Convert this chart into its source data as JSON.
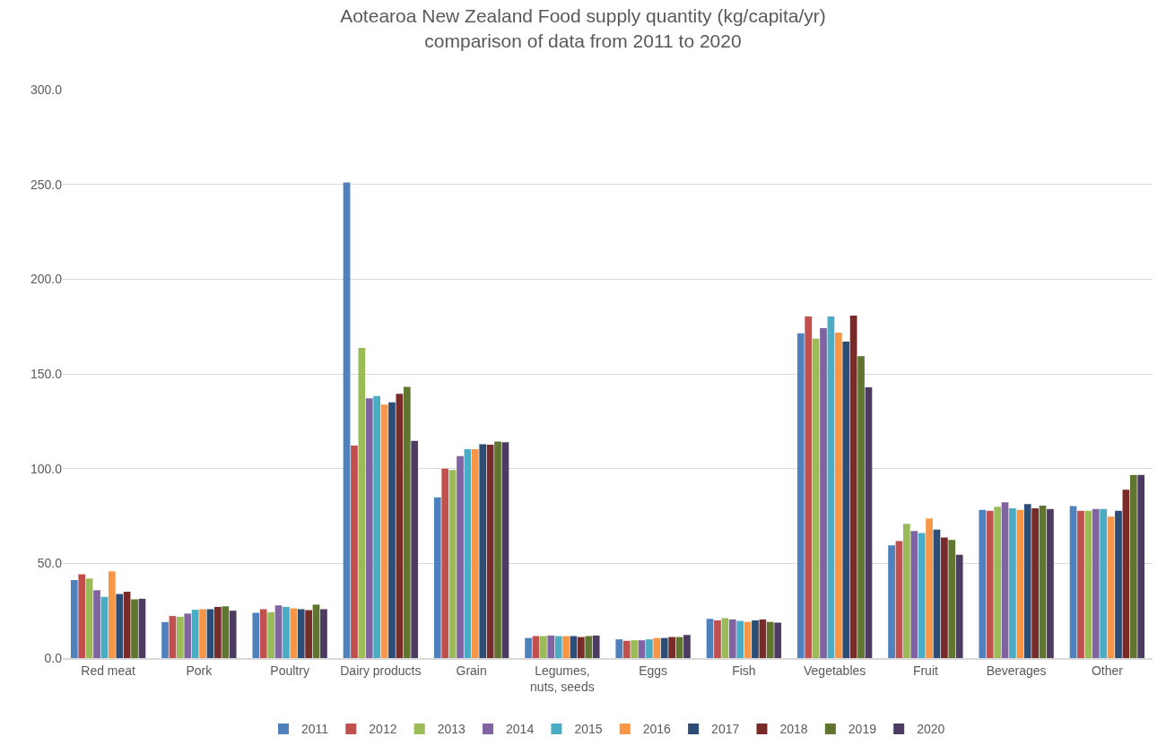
{
  "chart_data": {
    "type": "bar",
    "title": "Aotearoa New Zealand Food supply quantity (kg/capita/yr)\ncomparison of data from 2011 to 2020",
    "categories": [
      "Red meat",
      "Pork",
      "Poultry",
      "Dairy products",
      "Grain",
      "Legumes,\nnuts, seeds",
      "Eggs",
      "Fish",
      "Vegetables",
      "Fruit",
      "Beverages",
      "Other"
    ],
    "series": [
      {
        "name": "2011",
        "color": "#4f81bd",
        "values": [
          41.2,
          19.0,
          23.9,
          251.0,
          84.8,
          10.6,
          9.9,
          20.7,
          171.4,
          59.5,
          78.2,
          80.2
        ]
      },
      {
        "name": "2012",
        "color": "#c0504d",
        "values": [
          44.3,
          22.2,
          25.8,
          112.2,
          100.0,
          11.6,
          9.1,
          19.9,
          180.3,
          61.7,
          77.7,
          77.7
        ]
      },
      {
        "name": "2013",
        "color": "#9bbb59",
        "values": [
          42.0,
          21.8,
          24.2,
          163.7,
          99.3,
          11.6,
          9.4,
          21.1,
          168.6,
          70.9,
          79.8,
          77.7
        ]
      },
      {
        "name": "2014",
        "color": "#8064a2",
        "values": [
          35.8,
          23.5,
          27.8,
          137.1,
          106.6,
          11.9,
          9.4,
          20.4,
          174.1,
          67.1,
          82.2,
          78.7
        ]
      },
      {
        "name": "2015",
        "color": "#4bacc6",
        "values": [
          32.3,
          25.5,
          27.0,
          138.3,
          110.2,
          11.6,
          9.9,
          19.6,
          180.3,
          66.0,
          79.0,
          78.7
        ]
      },
      {
        "name": "2016",
        "color": "#f79646",
        "values": [
          45.8,
          25.8,
          26.2,
          133.8,
          110.2,
          11.6,
          10.6,
          19.1,
          171.8,
          73.7,
          78.2,
          74.6
        ]
      },
      {
        "name": "2017",
        "color": "#2c4d75",
        "values": [
          33.8,
          25.8,
          25.8,
          135.0,
          112.9,
          11.6,
          10.6,
          19.9,
          167.0,
          67.8,
          81.3,
          77.7
        ]
      },
      {
        "name": "2018",
        "color": "#772c2a",
        "values": [
          35.0,
          27.0,
          25.3,
          139.5,
          112.6,
          11.1,
          11.1,
          20.4,
          180.7,
          63.6,
          79.0,
          88.8
        ]
      },
      {
        "name": "2019",
        "color": "#5f7530",
        "values": [
          31.0,
          27.3,
          28.2,
          143.1,
          114.3,
          11.6,
          11.1,
          19.1,
          159.3,
          62.3,
          80.5,
          96.6
        ]
      },
      {
        "name": "2020",
        "color": "#4d3b62",
        "values": [
          31.3,
          25.0,
          25.8,
          114.6,
          113.9,
          11.9,
          12.2,
          18.7,
          142.9,
          54.5,
          78.7,
          96.6
        ]
      }
    ],
    "ylim": [
      0,
      300
    ],
    "yticks": [
      {
        "value": 0,
        "label": "0.0"
      },
      {
        "value": 50,
        "label": "50.0"
      },
      {
        "value": 100,
        "label": "100.0"
      },
      {
        "value": 150,
        "label": "150.0"
      },
      {
        "value": 200,
        "label": "200.0"
      },
      {
        "value": 250,
        "label": "250.0"
      },
      {
        "value": 300,
        "label": "300.0"
      }
    ],
    "grid": "y",
    "legend": "bottom"
  }
}
